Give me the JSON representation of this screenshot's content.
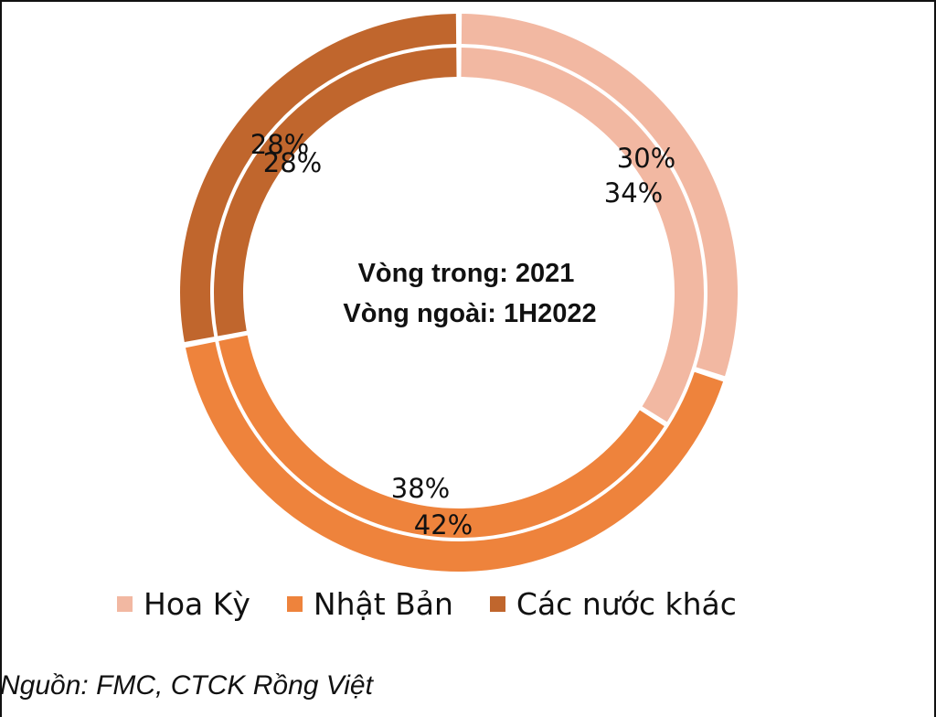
{
  "chart_data": {
    "type": "pie",
    "center_text": [
      "Vòng trong: 2021",
      "Vòng ngoài: 1H2022"
    ],
    "categories": [
      "Hoa Kỳ",
      "Nhật Bản",
      "Các nước khác"
    ],
    "series": [
      {
        "name": "2021",
        "ring": "inner",
        "values": [
          34,
          38,
          28
        ]
      },
      {
        "name": "1H2022",
        "ring": "outer",
        "values": [
          30,
          42,
          28
        ]
      }
    ],
    "colors": [
      "#f2b8a2",
      "#ee833c",
      "#c0662d"
    ],
    "legend": "bottom",
    "value_suffix": "%"
  },
  "legend": {
    "items": [
      {
        "label": "Hoa Kỳ",
        "color": "#f2b8a2"
      },
      {
        "label": "Nhật Bản",
        "color": "#ee833c"
      },
      {
        "label": "Các nước khác",
        "color": "#c0662d"
      }
    ]
  },
  "source": "Nguồn: FMC, CTCK Rồng Việt"
}
